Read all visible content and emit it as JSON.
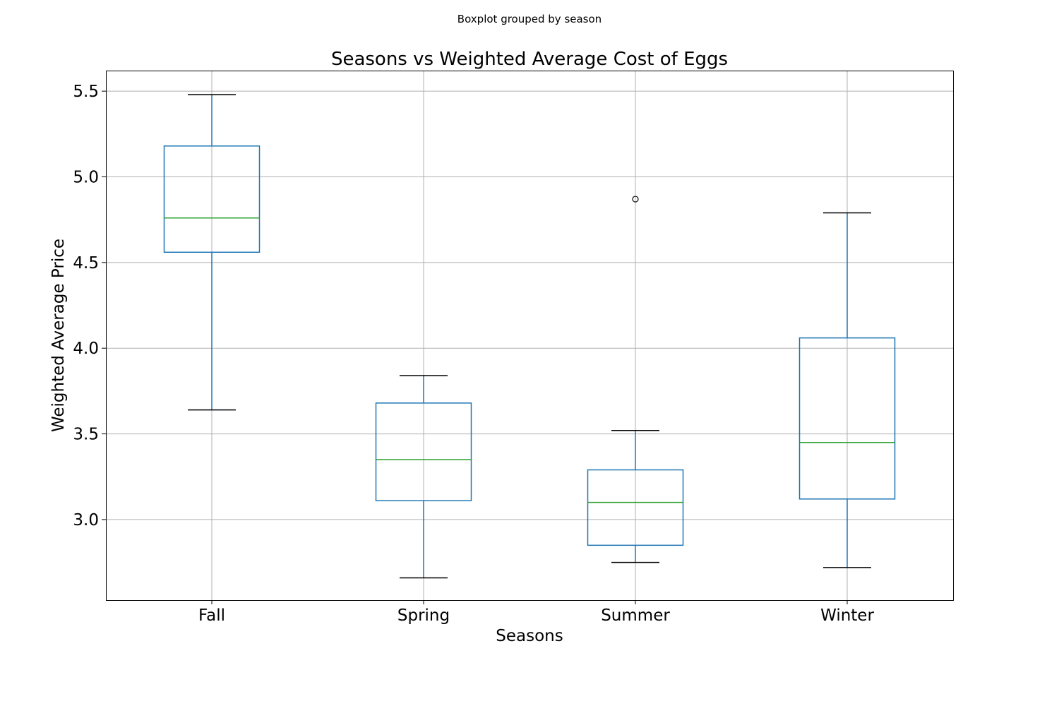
{
  "figure": {
    "suptitle": "Boxplot grouped by season"
  },
  "chart_data": {
    "type": "box",
    "title": "Seasons vs Weighted Average Cost of Eggs",
    "xlabel": "Seasons",
    "ylabel": "Weighted Average Price",
    "categories": [
      "Fall",
      "Spring",
      "Summer",
      "Winter"
    ],
    "ylim": [
      2.53,
      5.62
    ],
    "yticks": [
      3.0,
      3.5,
      4.0,
      4.5,
      5.0,
      5.5
    ],
    "ytick_labels": [
      "3.0",
      "3.5",
      "4.0",
      "4.5",
      "5.0",
      "5.5"
    ],
    "grid": true,
    "boxes": [
      {
        "category": "Fall",
        "whisker_low": 3.64,
        "q1": 4.56,
        "median": 4.76,
        "q3": 5.18,
        "whisker_high": 5.48,
        "outliers": []
      },
      {
        "category": "Spring",
        "whisker_low": 2.66,
        "q1": 3.11,
        "median": 3.35,
        "q3": 3.68,
        "whisker_high": 3.84,
        "outliers": []
      },
      {
        "category": "Summer",
        "whisker_low": 2.75,
        "q1": 2.85,
        "median": 3.1,
        "q3": 3.29,
        "whisker_high": 3.52,
        "outliers": [
          4.87
        ]
      },
      {
        "category": "Winter",
        "whisker_low": 2.72,
        "q1": 3.12,
        "median": 3.45,
        "q3": 4.06,
        "whisker_high": 4.79,
        "outliers": []
      }
    ],
    "colors": {
      "box": "#1f77b4",
      "whisker": "#1f77b4",
      "cap": "#000000",
      "median": "#2ca02c",
      "flier": "#000000",
      "grid": "#b0b0b0",
      "axes": "#000000"
    }
  }
}
